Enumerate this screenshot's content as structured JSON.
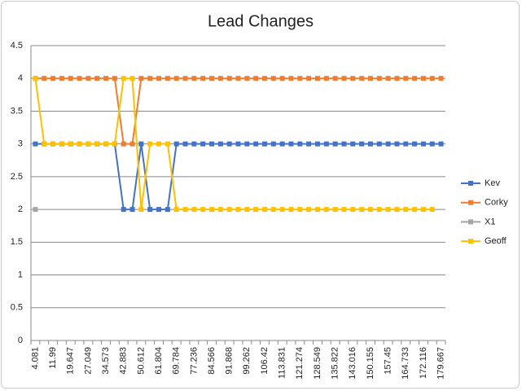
{
  "chart_data": {
    "type": "line",
    "title": "Lead Changes",
    "categories": [
      "4.081",
      null,
      "11.99",
      null,
      "19.647",
      null,
      "27.049",
      null,
      "34.573",
      null,
      "42.883",
      null,
      "50.612",
      null,
      "61.804",
      null,
      "69.784",
      null,
      "77.236",
      null,
      "84.566",
      null,
      "91.868",
      null,
      "99.262",
      null,
      "106.42",
      null,
      "113.831",
      null,
      "121.274",
      null,
      "128.549",
      null,
      "135.822",
      null,
      "143.016",
      null,
      "150.155",
      null,
      "157.45",
      null,
      "164.733",
      null,
      "172.116",
      null,
      "179.667"
    ],
    "series": [
      {
        "name": "Kev",
        "color": "#4472c4",
        "values": [
          3,
          3,
          3,
          3,
          3,
          3,
          3,
          3,
          3,
          3,
          2,
          2,
          3,
          2,
          2,
          2,
          3,
          3,
          3,
          3,
          3,
          3,
          3,
          3,
          3,
          3,
          3,
          3,
          3,
          3,
          3,
          3,
          3,
          3,
          3,
          3,
          3,
          3,
          3,
          3,
          3,
          3,
          3,
          3,
          3,
          3,
          3
        ]
      },
      {
        "name": "Corky",
        "color": "#ed7d31",
        "values": [
          4,
          4,
          4,
          4,
          4,
          4,
          4,
          4,
          4,
          4,
          3,
          3,
          4,
          4,
          4,
          4,
          4,
          4,
          4,
          4,
          4,
          4,
          4,
          4,
          4,
          4,
          4,
          4,
          4,
          4,
          4,
          4,
          4,
          4,
          4,
          4,
          4,
          4,
          4,
          4,
          4,
          4,
          4,
          4,
          4,
          4,
          4
        ]
      },
      {
        "name": "X1",
        "color": "#a5a5a5",
        "values": [
          2,
          null,
          null,
          null,
          null,
          null,
          null,
          null,
          null,
          null,
          null,
          null,
          null,
          null,
          null,
          null,
          null,
          null,
          null,
          null,
          null,
          null,
          null,
          null,
          null,
          null,
          null,
          null,
          null,
          null,
          null,
          null,
          null,
          null,
          null,
          null,
          null,
          null,
          null,
          null,
          null,
          null,
          null,
          null,
          null,
          null,
          null
        ]
      },
      {
        "name": "Geoff",
        "color": "#ffc000",
        "values": [
          4,
          3,
          3,
          3,
          3,
          3,
          3,
          3,
          3,
          3,
          4,
          4,
          2,
          3,
          3,
          3,
          2,
          2,
          2,
          2,
          2,
          2,
          2,
          2,
          2,
          2,
          2,
          2,
          2,
          2,
          2,
          2,
          2,
          2,
          2,
          2,
          2,
          2,
          2,
          2,
          2,
          2,
          2,
          2,
          2,
          2,
          null
        ]
      }
    ],
    "ylim": [
      0,
      4.5
    ],
    "yticks": [
      0,
      0.5,
      1,
      1.5,
      2,
      2.5,
      3,
      3.5,
      4,
      4.5
    ],
    "grid": true,
    "legend": "right"
  }
}
